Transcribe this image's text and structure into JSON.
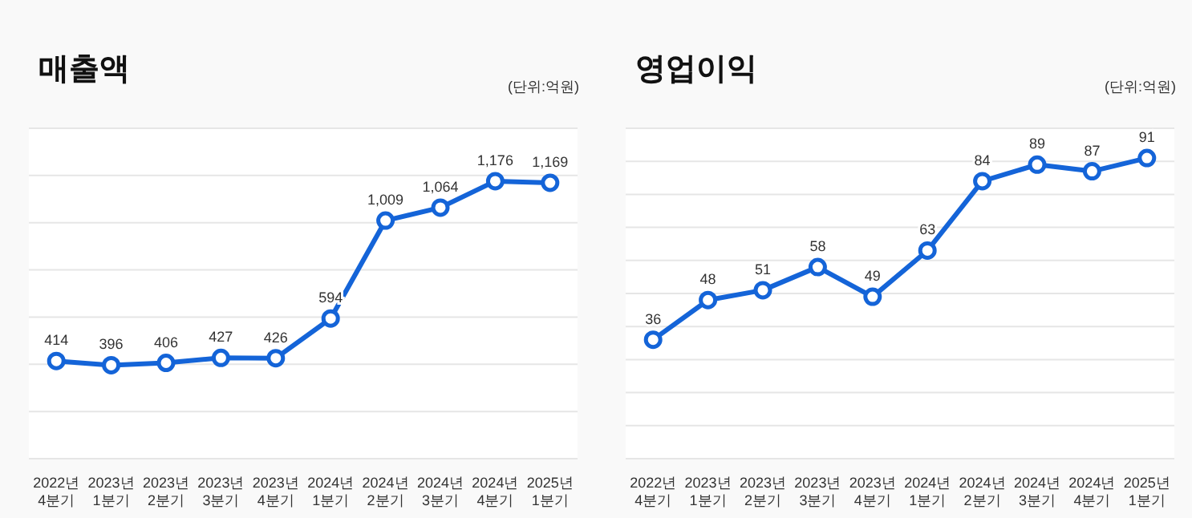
{
  "chart_data": [
    {
      "type": "line",
      "title": "매출액",
      "subtitle": "(단위:억원)",
      "categories": [
        "2022년 4분기",
        "2023년 1분기",
        "2023년 2분기",
        "2023년 3분기",
        "2023년 4분기",
        "2024년 1분기",
        "2024년 2분기",
        "2024년 3분기",
        "2024년 4분기",
        "2025년 1분기"
      ],
      "series": [
        {
          "color": "#1464d8",
          "values": [
            414,
            396,
            406,
            427,
            426,
            594,
            1009,
            1064,
            1176,
            1169
          ],
          "value_labels": [
            "414",
            "396",
            "406",
            "427",
            "426",
            "594",
            "1,009",
            "1,064",
            "1,176",
            "1,169"
          ]
        }
      ],
      "ylim": [
        0,
        1400
      ],
      "yticks": [
        {
          "value": 0,
          "label": null
        },
        {
          "value": 200,
          "label": null
        },
        {
          "value": 400,
          "label": null
        },
        {
          "value": 600,
          "label": null
        },
        {
          "value": 800,
          "label": null
        },
        {
          "value": 1000,
          "label": null
        },
        {
          "value": 1200,
          "label": null
        },
        {
          "value": 1400,
          "label": null
        }
      ],
      "tick_labels": "x",
      "grid": "y",
      "marker": "circle"
    },
    {
      "type": "line",
      "title": "영업이익",
      "subtitle": "(단위:억원)",
      "categories": [
        "2022년 4분기",
        "2023년 1분기",
        "2023년 2분기",
        "2023년 3분기",
        "2023년 4분기",
        "2024년 1분기",
        "2024년 2분기",
        "2024년 3분기",
        "2024년 4분기",
        "2025년 1분기"
      ],
      "series": [
        {
          "color": "#1464d8",
          "values": [
            36,
            48,
            51,
            58,
            49,
            63,
            84,
            89,
            87,
            91
          ]
        }
      ],
      "ylim": [
        0,
        100
      ],
      "yticks": [
        {
          "value": 0,
          "label": null
        },
        {
          "value": 10,
          "label": null
        },
        {
          "value": 20,
          "label": null
        },
        {
          "value": 30,
          "label": null
        },
        {
          "value": 40,
          "label": null
        },
        {
          "value": 50,
          "label": null
        },
        {
          "value": 60,
          "label": null
        },
        {
          "value": 70,
          "label": null
        },
        {
          "value": 80,
          "label": null
        },
        {
          "value": 90,
          "label": null
        },
        {
          "value": 100,
          "label": null
        }
      ],
      "tick_labels": "x",
      "grid": "y",
      "marker": "circle",
      "data_labels": true
    }
  ]
}
